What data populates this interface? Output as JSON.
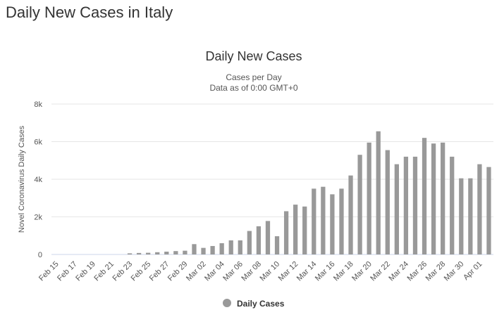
{
  "page": {
    "title": "Daily New Cases in Italy"
  },
  "colors": {
    "bar": "#999999",
    "grid": "#e6e6e6",
    "axis": "#ccd6eb"
  },
  "chart_data": {
    "type": "bar",
    "title": "Daily New Cases",
    "subtitle_lines": [
      "Cases per Day",
      "Data as of 0:00 GMT+0"
    ],
    "xlabel": "",
    "ylabel": "Novel Coronavirus Daily Cases",
    "ylim": [
      0,
      8000
    ],
    "yticks": [
      0,
      2000,
      4000,
      6000,
      8000
    ],
    "ytick_labels": [
      "0",
      "2k",
      "4k",
      "6k",
      "8k"
    ],
    "grid": true,
    "legend_position": "bottom-center",
    "categories": [
      "Feb 15",
      "Feb 16",
      "Feb 17",
      "Feb 18",
      "Feb 19",
      "Feb 20",
      "Feb 21",
      "Feb 22",
      "Feb 23",
      "Feb 24",
      "Feb 25",
      "Feb 26",
      "Feb 27",
      "Feb 28",
      "Feb 29",
      "Mar 01",
      "Mar 02",
      "Mar 03",
      "Mar 04",
      "Mar 05",
      "Mar 06",
      "Mar 07",
      "Mar 08",
      "Mar 09",
      "Mar 10",
      "Mar 11",
      "Mar 12",
      "Mar 13",
      "Mar 14",
      "Mar 15",
      "Mar 16",
      "Mar 17",
      "Mar 18",
      "Mar 19",
      "Mar 20",
      "Mar 21",
      "Mar 22",
      "Mar 23",
      "Mar 24",
      "Mar 25",
      "Mar 26",
      "Mar 27",
      "Mar 28",
      "Mar 29",
      "Mar 30",
      "Mar 31",
      "Apr 01",
      "Apr 02"
    ],
    "tick_labels": [
      "Feb 15",
      "Feb 17",
      "Feb 19",
      "Feb 21",
      "Feb 23",
      "Feb 25",
      "Feb 27",
      "Feb 29",
      "Mar 02",
      "Mar 04",
      "Mar 06",
      "Mar 08",
      "Mar 10",
      "Mar 12",
      "Mar 14",
      "Mar 16",
      "Mar 18",
      "Mar 20",
      "Mar 22",
      "Mar 24",
      "Mar 26",
      "Mar 28",
      "Mar 30",
      "Apr 01"
    ],
    "series": [
      {
        "name": "Daily Cases",
        "values": [
          0,
          0,
          0,
          0,
          0,
          0,
          0,
          0,
          60,
          80,
          90,
          120,
          150,
          180,
          200,
          550,
          350,
          450,
          600,
          750,
          750,
          1250,
          1500,
          1780,
          970,
          2300,
          2650,
          2550,
          3500,
          3600,
          3200,
          3500,
          4200,
          5300,
          5950,
          6550,
          5550,
          4800,
          5200,
          5200,
          6200,
          5900,
          5950,
          5200,
          4050,
          4050,
          4800,
          4650
        ]
      }
    ]
  }
}
